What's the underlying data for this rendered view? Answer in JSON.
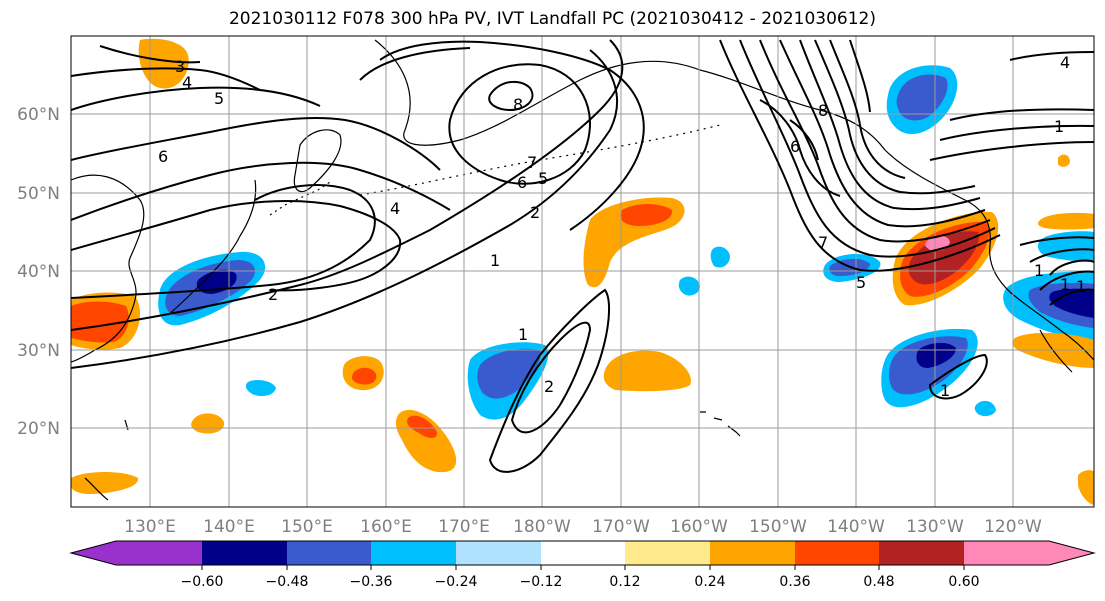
{
  "title": "2021030112 F078 300 hPa PV, IVT Landfall PC (2021030412 - 2021030612)",
  "lat_labels": [
    "60°N",
    "50°N",
    "40°N",
    "30°N",
    "20°N"
  ],
  "lon_labels": [
    "130°E",
    "140°E",
    "150°E",
    "160°E",
    "170°E",
    "180°W",
    "170°W",
    "160°W",
    "150°W",
    "140°W",
    "130°W",
    "120°W"
  ],
  "colorbar": {
    "ticks": [
      "−0.60",
      "−0.48",
      "−0.36",
      "−0.24",
      "−0.12",
      "0.12",
      "0.24",
      "0.36",
      "0.48",
      "0.60"
    ],
    "colors": [
      "#9932cc",
      "#00008b",
      "#3a5bcd",
      "#00bfff",
      "#b0e2ff",
      "#ffffff",
      "#ffeb8c",
      "#ffa500",
      "#ff4500",
      "#b22222",
      "#ff88b8"
    ]
  },
  "contour_labels": [
    "3",
    "4",
    "5",
    "6",
    "8",
    "7",
    "6",
    "5",
    "2",
    "1",
    "4",
    "2",
    "1",
    "2",
    "8",
    "6",
    "7",
    "5",
    "1",
    "4",
    "1",
    "1",
    "1",
    "1"
  ],
  "colors": {
    "text": "#000000",
    "axis_label": "#7f7f7f",
    "grid": "#9b9b9b"
  }
}
